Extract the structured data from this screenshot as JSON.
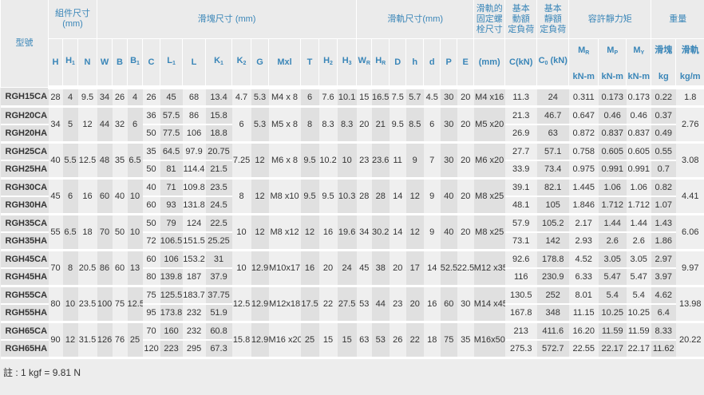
{
  "header": {
    "model": "型號",
    "assembly": "組件尺寸 (mm)",
    "block": "滑塊尺寸 (mm)",
    "rail": "滑軌尺寸(mm)",
    "bolt": [
      "滑軌的",
      "固定螺",
      "栓尺寸"
    ],
    "dynamic": [
      "基本",
      "動額",
      "定負荷"
    ],
    "static": [
      "基本",
      "靜額",
      "定負荷"
    ],
    "moment": "容許靜力矩",
    "weight": "重量",
    "symbols": [
      {
        "b": "H",
        "s": ""
      },
      {
        "b": "H",
        "s": "1"
      },
      {
        "b": "N",
        "s": ""
      },
      {
        "b": "W",
        "s": ""
      },
      {
        "b": "B",
        "s": ""
      },
      {
        "b": "B",
        "s": "1"
      },
      {
        "b": "C",
        "s": ""
      },
      {
        "b": "L",
        "s": "1"
      },
      {
        "b": "L",
        "s": ""
      },
      {
        "b": "K",
        "s": "1"
      },
      {
        "b": "K",
        "s": "2"
      },
      {
        "b": "G",
        "s": ""
      },
      {
        "b": "Mxl",
        "s": ""
      },
      {
        "b": "T",
        "s": ""
      },
      {
        "b": "H",
        "s": "2"
      },
      {
        "b": "H",
        "s": "3"
      },
      {
        "b": "W",
        "s": "R"
      },
      {
        "b": "H",
        "s": "R"
      },
      {
        "b": "D",
        "s": ""
      },
      {
        "b": "h",
        "s": ""
      },
      {
        "b": "d",
        "s": ""
      },
      {
        "b": "P",
        "s": ""
      },
      {
        "b": "E",
        "s": ""
      }
    ],
    "bolt_unit": "(mm)",
    "c_unit": "C(kN)",
    "c0_unit": {
      "b": "C",
      "s": "0",
      "u": " (kN)"
    },
    "moments": [
      {
        "b": "M",
        "s": "R",
        "u": "kN-m"
      },
      {
        "b": "M",
        "s": "P",
        "u": "kN-m"
      },
      {
        "b": "M",
        "s": "Y",
        "u": "kN-m"
      }
    ],
    "weights": [
      {
        "l": "滑塊",
        "u": "kg"
      },
      {
        "l": "滑軌",
        "u": "kg/m"
      }
    ]
  },
  "groups": [
    {
      "shared": {
        "H": "28",
        "H1": "4",
        "N": "9.5",
        "W": "34",
        "B": "26",
        "B1": "4",
        "K2": "4.7",
        "G": "5.3",
        "Mxl": "M4 x 8",
        "T": "6",
        "H2": "7.6",
        "H3": "10.1",
        "WR": "15",
        "HR": "16.5",
        "D": "7.5",
        "h": "5.7",
        "d": "4.5",
        "P": "30",
        "E": "20",
        "bolt": "M4 x16",
        "kgm": "1.8"
      },
      "rows": [
        {
          "model": "RGH15CA",
          "C": "26",
          "L1": "45",
          "L": "68",
          "K1": "13.4",
          "Ckn": "11.3",
          "C0": "24",
          "MR": "0.311",
          "MP": "0.173",
          "MY": "0.173",
          "kg": "0.22"
        }
      ]
    },
    {
      "shared": {
        "H": "34",
        "H1": "5",
        "N": "12",
        "W": "44",
        "B": "32",
        "B1": "6",
        "K2": "6",
        "G": "5.3",
        "Mxl": "M5 x 8",
        "T": "8",
        "H2": "8.3",
        "H3": "8.3",
        "WR": "20",
        "HR": "21",
        "D": "9.5",
        "h": "8.5",
        "d": "6",
        "P": "30",
        "E": "20",
        "bolt": "M5 x20",
        "kgm": "2.76"
      },
      "rows": [
        {
          "model": "RGH20CA",
          "C": "36",
          "L1": "57.5",
          "L": "86",
          "K1": "15.8",
          "Ckn": "21.3",
          "C0": "46.7",
          "MR": "0.647",
          "MP": "0.46",
          "MY": "0.46",
          "kg": "0.37"
        },
        {
          "model": "RGH20HA",
          "C": "50",
          "L1": "77.5",
          "L": "106",
          "K1": "18.8",
          "Ckn": "26.9",
          "C0": "63",
          "MR": "0.872",
          "MP": "0.837",
          "MY": "0.837",
          "kg": "0.49"
        }
      ]
    },
    {
      "shared": {
        "H": "40",
        "H1": "5.5",
        "N": "12.5",
        "W": "48",
        "B": "35",
        "B1": "6.5",
        "K2": "7.25",
        "G": "12",
        "Mxl": "M6 x 8",
        "T": "9.5",
        "H2": "10.2",
        "H3": "10",
        "WR": "23",
        "HR": "23.6",
        "D": "11",
        "h": "9",
        "d": "7",
        "P": "30",
        "E": "20",
        "bolt": "M6 x20",
        "kgm": "3.08"
      },
      "rows": [
        {
          "model": "RGH25CA",
          "C": "35",
          "L1": "64.5",
          "L": "97.9",
          "K1": "20.75",
          "Ckn": "27.7",
          "C0": "57.1",
          "MR": "0.758",
          "MP": "0.605",
          "MY": "0.605",
          "kg": "0.55"
        },
        {
          "model": "RGH25HA",
          "C": "50",
          "L1": "81",
          "L": "114.4",
          "K1": "21.5",
          "Ckn": "33.9",
          "C0": "73.4",
          "MR": "0.975",
          "MP": "0.991",
          "MY": "0.991",
          "kg": "0.7"
        }
      ]
    },
    {
      "shared": {
        "H": "45",
        "H1": "6",
        "N": "16",
        "W": "60",
        "B": "40",
        "B1": "10",
        "K2": "8",
        "G": "12",
        "Mxl": "M8 x10",
        "T": "9.5",
        "H2": "9.5",
        "H3": "10.3",
        "WR": "28",
        "HR": "28",
        "D": "14",
        "h": "12",
        "d": "9",
        "P": "40",
        "E": "20",
        "bolt": "M8 x25",
        "kgm": "4.41"
      },
      "rows": [
        {
          "model": "RGH30CA",
          "C": "40",
          "L1": "71",
          "L": "109.8",
          "K1": "23.5",
          "Ckn": "39.1",
          "C0": "82.1",
          "MR": "1.445",
          "MP": "1.06",
          "MY": "1.06",
          "kg": "0.82"
        },
        {
          "model": "RGH30HA",
          "C": "60",
          "L1": "93",
          "L": "131.8",
          "K1": "24.5",
          "Ckn": "48.1",
          "C0": "105",
          "MR": "1.846",
          "MP": "1.712",
          "MY": "1.712",
          "kg": "1.07"
        }
      ]
    },
    {
      "shared": {
        "H": "55",
        "H1": "6.5",
        "N": "18",
        "W": "70",
        "B": "50",
        "B1": "10",
        "K2": "10",
        "G": "12",
        "Mxl": "M8 x12",
        "T": "12",
        "H2": "16",
        "H3": "19.6",
        "WR": "34",
        "HR": "30.2",
        "D": "14",
        "h": "12",
        "d": "9",
        "P": "40",
        "E": "20",
        "bolt": "M8 x25",
        "kgm": "6.06"
      },
      "rows": [
        {
          "model": "RGH35CA",
          "C": "50",
          "L1": "79",
          "L": "124",
          "K1": "22.5",
          "Ckn": "57.9",
          "C0": "105.2",
          "MR": "2.17",
          "MP": "1.44",
          "MY": "1.44",
          "kg": "1.43"
        },
        {
          "model": "RGH35HA",
          "C": "72",
          "L1": "106.5",
          "L": "151.5",
          "K1": "25.25",
          "Ckn": "73.1",
          "C0": "142",
          "MR": "2.93",
          "MP": "2.6",
          "MY": "2.6",
          "kg": "1.86"
        }
      ]
    },
    {
      "shared": {
        "H": "70",
        "H1": "8",
        "N": "20.5",
        "W": "86",
        "B": "60",
        "B1": "13",
        "K2": "10",
        "G": "12.9",
        "Mxl": "M10x17",
        "T": "16",
        "H2": "20",
        "H3": "24",
        "WR": "45",
        "HR": "38",
        "D": "20",
        "h": "17",
        "d": "14",
        "P": "52.5",
        "E": "22.5",
        "bolt": "M12 x35",
        "kgm": "9.97"
      },
      "rows": [
        {
          "model": "RGH45CA",
          "C": "60",
          "L1": "106",
          "L": "153.2",
          "K1": "31",
          "Ckn": "92.6",
          "C0": "178.8",
          "MR": "4.52",
          "MP": "3.05",
          "MY": "3.05",
          "kg": "2.97"
        },
        {
          "model": "RGH45HA",
          "C": "80",
          "L1": "139.8",
          "L": "187",
          "K1": "37.9",
          "Ckn": "116",
          "C0": "230.9",
          "MR": "6.33",
          "MP": "5.47",
          "MY": "5.47",
          "kg": "3.97"
        }
      ]
    },
    {
      "shared": {
        "H": "80",
        "H1": "10",
        "N": "23.5",
        "W": "100",
        "B": "75",
        "B1": "12.5",
        "K2": "12.5",
        "G": "12.9",
        "Mxl": "M12x18",
        "T": "17.5",
        "H2": "22",
        "H3": "27.5",
        "WR": "53",
        "HR": "44",
        "D": "23",
        "h": "20",
        "d": "16",
        "P": "60",
        "E": "30",
        "bolt": "M14 x45",
        "kgm": "13.98"
      },
      "rows": [
        {
          "model": "RGH55CA",
          "C": "75",
          "L1": "125.5",
          "L": "183.7",
          "K1": "37.75",
          "Ckn": "130.5",
          "C0": "252",
          "MR": "8.01",
          "MP": "5.4",
          "MY": "5.4",
          "kg": "4.62"
        },
        {
          "model": "RGH55HA",
          "C": "95",
          "L1": "173.8",
          "L": "232",
          "K1": "51.9",
          "Ckn": "167.8",
          "C0": "348",
          "MR": "11.15",
          "MP": "10.25",
          "MY": "10.25",
          "kg": "6.4"
        }
      ]
    },
    {
      "shared": {
        "H": "90",
        "H1": "12",
        "N": "31.5",
        "W": "126",
        "B": "76",
        "B1": "25",
        "K2": "15.8",
        "G": "12.9",
        "Mxl": "M16 x20",
        "T": "25",
        "H2": "15",
        "H3": "15",
        "WR": "63",
        "HR": "53",
        "D": "26",
        "h": "22",
        "d": "18",
        "P": "75",
        "E": "35",
        "bolt": "M16x50",
        "kgm": "20.22"
      },
      "rows": [
        {
          "model": "RGH65CA",
          "C": "70",
          "L1": "160",
          "L": "232",
          "K1": "60.8",
          "Ckn": "213",
          "C0": "411.6",
          "MR": "16.20",
          "MP": "11.59",
          "MY": "11.59",
          "kg": "8.33"
        },
        {
          "model": "RGH65HA",
          "C": "120",
          "L1": "223",
          "L": "295",
          "K1": "67.3",
          "Ckn": "275.3",
          "C0": "572.7",
          "MR": "22.55",
          "MP": "22.17",
          "MY": "22.17",
          "kg": "11.62"
        }
      ]
    }
  ],
  "note": "註 : 1 kgf = 9.81 N"
}
